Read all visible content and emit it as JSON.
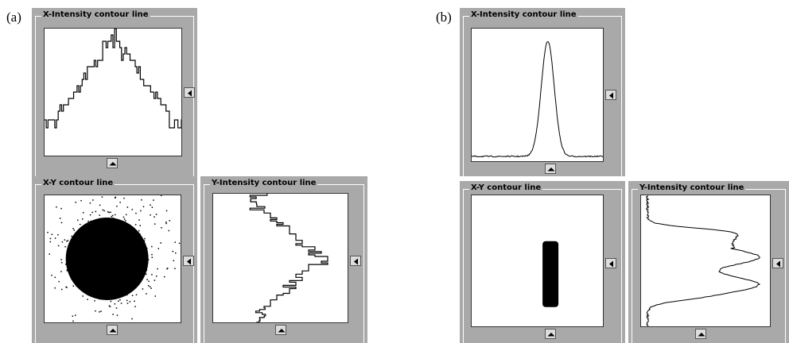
{
  "panels": [
    {
      "label": "(a)",
      "views": [
        {
          "title": "X-Intensity contour line"
        },
        {
          "title": "X-Y contour line"
        },
        {
          "title": "Y-Intensity contour line"
        }
      ]
    },
    {
      "label": "(b)",
      "views": [
        {
          "title": "X-Intensity contour line"
        },
        {
          "title": "X-Y contour line"
        },
        {
          "title": "Y-Intensity contour line"
        }
      ]
    }
  ]
}
